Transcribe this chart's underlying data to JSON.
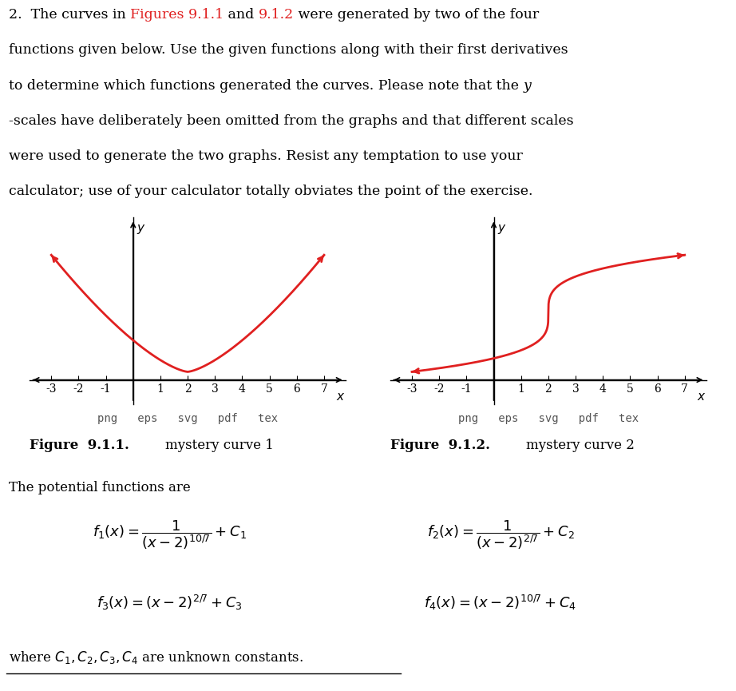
{
  "curve_color": "#e02020",
  "bg_color": "#ffffff",
  "x_ticks": [
    -3,
    -2,
    -1,
    1,
    2,
    3,
    4,
    5,
    6,
    7
  ],
  "fig_label1": "Figure  9.1.1.",
  "fig_sublabel1": "mystery curve 1",
  "fig_label2": "Figure  9.1.2.",
  "fig_sublabel2": "mystery curve 2",
  "png_eps_svg_pdf_tex": "png   eps   svg   pdf   tex",
  "potential_text": "The potential functions are",
  "where_text": "where $C_1, C_2, C_3, C_4$ are unknown constants.",
  "fontsize_body": 12.5,
  "fontsize_formula": 13,
  "fontsize_tick": 10
}
